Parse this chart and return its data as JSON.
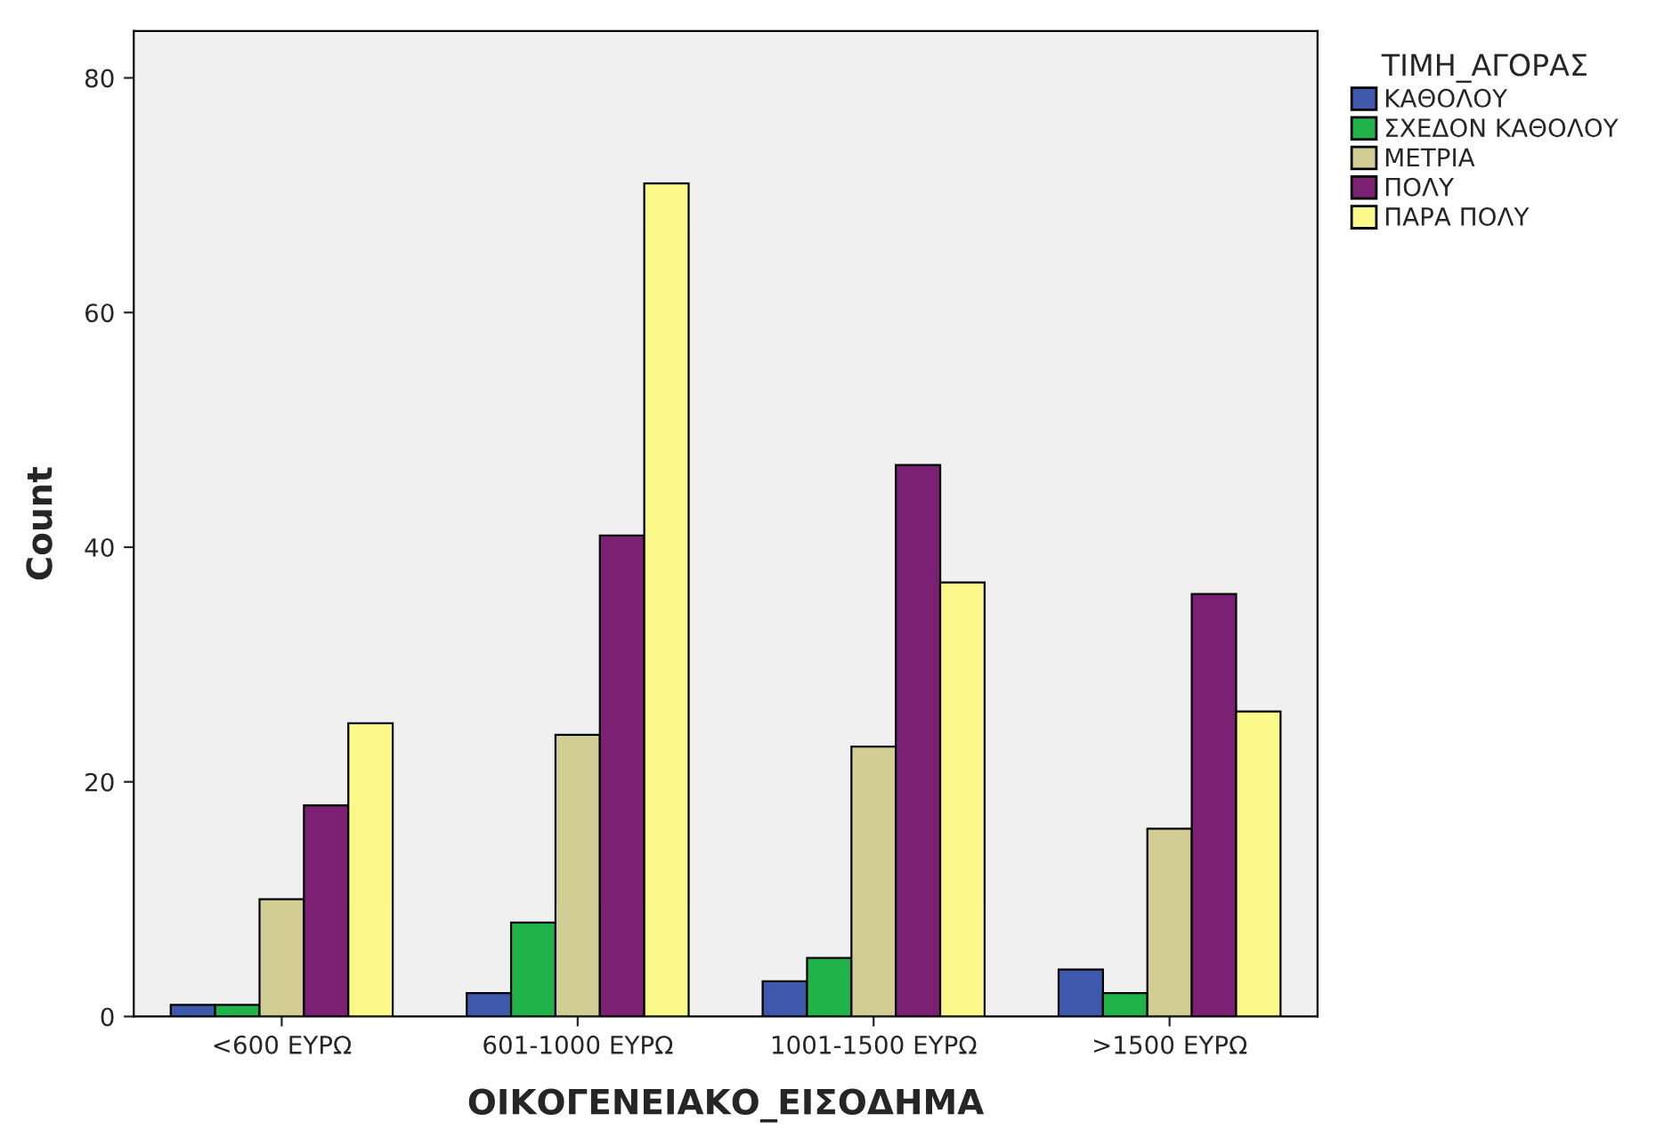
{
  "chart_data": {
    "type": "bar",
    "xlabel": "ΟΙΚΟΓΕΝΕΙΑΚΟ_ΕΙΣΟΔΗΜΑ",
    "ylabel": "Count",
    "legend_title": "ΤΙΜΗ_ΑΓΟΡΑΣ",
    "categories": [
      "<600 ΕΥΡΩ",
      "601-1000 ΕΥΡΩ",
      "1001-1500 ΕΥΡΩ",
      ">1500 ΕΥΡΩ"
    ],
    "series": [
      {
        "name": "ΚΑΘΟΛΟΥ",
        "color": "#3e58ac",
        "values": [
          1,
          2,
          3,
          4
        ]
      },
      {
        "name": "ΣΧΕΔΟΝ ΚΑΘΟΛΟΥ",
        "color": "#21b24a",
        "values": [
          1,
          8,
          5,
          2
        ]
      },
      {
        "name": "ΜΕΤΡΙΑ",
        "color": "#d2cc95",
        "values": [
          10,
          24,
          23,
          16
        ]
      },
      {
        "name": "ΠΟΛΥ",
        "color": "#7b2174",
        "values": [
          18,
          41,
          47,
          36
        ]
      },
      {
        "name": "ΠΑΡΑ ΠΟΛΥ",
        "color": "#fbf98a",
        "values": [
          25,
          71,
          37,
          26
        ]
      }
    ],
    "ylim": [
      0,
      84
    ],
    "yticks": [
      0,
      20,
      40,
      60,
      80
    ],
    "grid": false,
    "legend": "top right"
  }
}
